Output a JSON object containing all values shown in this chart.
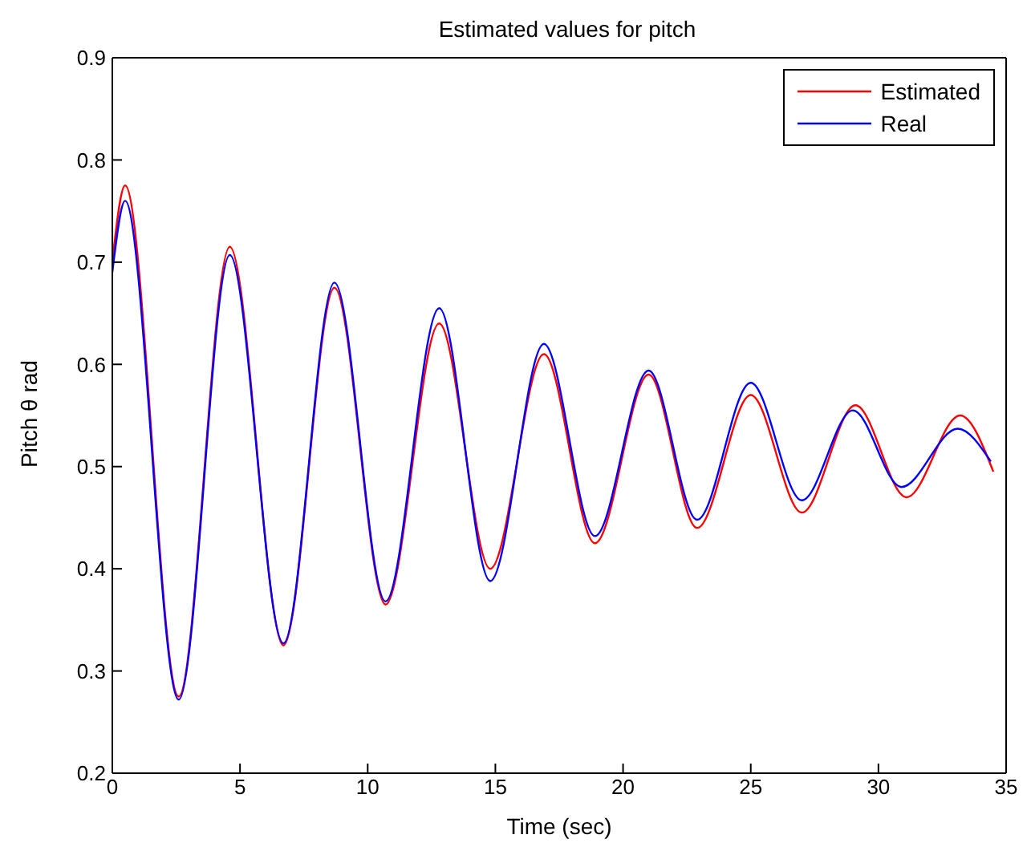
{
  "chart_data": {
    "type": "line",
    "title": "Estimated values for pitch",
    "xlabel": "Time (sec)",
    "ylabel": "Pitch θ rad",
    "series": [
      {
        "name": "Estimated",
        "color": "#ff0000",
        "x": [
          0,
          0.5,
          2.6,
          4.6,
          6.7,
          8.7,
          10.7,
          12.8,
          14.8,
          16.9,
          18.9,
          21.0,
          22.9,
          25.0,
          27.0,
          29.1,
          31.1,
          33.2,
          34.5
        ],
        "values": [
          0.7,
          0.775,
          0.275,
          0.715,
          0.325,
          0.675,
          0.365,
          0.64,
          0.4,
          0.61,
          0.425,
          0.59,
          0.44,
          0.57,
          0.455,
          0.56,
          0.47,
          0.55,
          0.495
        ]
      },
      {
        "name": "Real",
        "color": "#0000ff",
        "x": [
          0,
          0.5,
          2.6,
          4.6,
          6.7,
          8.7,
          10.7,
          12.8,
          14.8,
          16.9,
          18.9,
          21.0,
          22.9,
          25.0,
          27.0,
          29.0,
          30.9,
          33.1,
          34.4
        ],
        "values": [
          0.69,
          0.76,
          0.272,
          0.707,
          0.327,
          0.68,
          0.368,
          0.655,
          0.388,
          0.62,
          0.432,
          0.594,
          0.448,
          0.582,
          0.467,
          0.555,
          0.48,
          0.537,
          0.505
        ]
      }
    ],
    "xlim": [
      0,
      35
    ],
    "xticks": [
      0,
      5,
      10,
      15,
      20,
      25,
      30,
      35
    ],
    "ylim": [
      0.2,
      0.9
    ],
    "yticks": [
      0.2,
      0.3,
      0.4,
      0.5,
      0.6,
      0.7,
      0.8,
      0.9
    ],
    "grid": false,
    "legend": "top right",
    "marker": "none",
    "line_style": "solid"
  }
}
